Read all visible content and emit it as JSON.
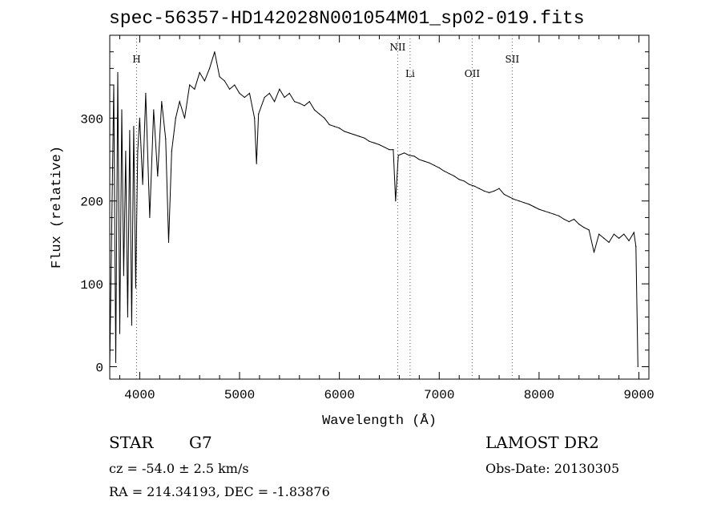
{
  "header": {
    "title": "spec-56357-HD142028N001054M01_sp02-019.fits"
  },
  "info": {
    "class_label": "STAR",
    "subclass": "G7",
    "survey": "LAMOST DR2",
    "cz": "cz = -54.0 ± 2.5 km/s",
    "obs_date": "Obs-Date: 20130305",
    "radec": "RA = 214.34193, DEC =  -1.83876"
  },
  "chart_data": {
    "type": "line",
    "title": "spec-56357-HD142028N001054M01_sp02-019.fits",
    "xlabel": "Wavelength (Å)",
    "ylabel": "Flux (relative)",
    "xlim": [
      3700,
      9100
    ],
    "ylim": [
      -15,
      400
    ],
    "xticks": [
      4000,
      5000,
      6000,
      7000,
      8000,
      9000
    ],
    "yticks": [
      0,
      100,
      200,
      300
    ],
    "series": [
      {
        "points": [
          [
            3700,
            0
          ],
          [
            3740,
            340
          ],
          [
            3760,
            5
          ],
          [
            3780,
            355
          ],
          [
            3800,
            40
          ],
          [
            3820,
            310
          ],
          [
            3840,
            110
          ],
          [
            3860,
            260
          ],
          [
            3880,
            60
          ],
          [
            3900,
            285
          ],
          [
            3920,
            50
          ],
          [
            3940,
            290
          ],
          [
            3960,
            95
          ],
          [
            3980,
            260
          ],
          [
            4000,
            300
          ],
          [
            4030,
            220
          ],
          [
            4060,
            330
          ],
          [
            4100,
            180
          ],
          [
            4140,
            310
          ],
          [
            4180,
            230
          ],
          [
            4220,
            320
          ],
          [
            4260,
            275
          ],
          [
            4290,
            150
          ],
          [
            4320,
            260
          ],
          [
            4360,
            300
          ],
          [
            4400,
            320
          ],
          [
            4450,
            300
          ],
          [
            4500,
            340
          ],
          [
            4550,
            335
          ],
          [
            4600,
            355
          ],
          [
            4650,
            345
          ],
          [
            4700,
            360
          ],
          [
            4750,
            380
          ],
          [
            4800,
            350
          ],
          [
            4850,
            345
          ],
          [
            4900,
            335
          ],
          [
            4950,
            340
          ],
          [
            5000,
            330
          ],
          [
            5050,
            325
          ],
          [
            5100,
            330
          ],
          [
            5150,
            300
          ],
          [
            5170,
            245
          ],
          [
            5190,
            305
          ],
          [
            5250,
            325
          ],
          [
            5300,
            330
          ],
          [
            5350,
            320
          ],
          [
            5400,
            335
          ],
          [
            5450,
            325
          ],
          [
            5500,
            330
          ],
          [
            5550,
            320
          ],
          [
            5600,
            318
          ],
          [
            5650,
            315
          ],
          [
            5700,
            320
          ],
          [
            5750,
            310
          ],
          [
            5800,
            305
          ],
          [
            5850,
            300
          ],
          [
            5900,
            292
          ],
          [
            5950,
            290
          ],
          [
            6000,
            288
          ],
          [
            6050,
            284
          ],
          [
            6100,
            282
          ],
          [
            6150,
            280
          ],
          [
            6200,
            278
          ],
          [
            6250,
            276
          ],
          [
            6300,
            272
          ],
          [
            6350,
            270
          ],
          [
            6400,
            268
          ],
          [
            6450,
            265
          ],
          [
            6500,
            262
          ],
          [
            6540,
            262
          ],
          [
            6563,
            200
          ],
          [
            6590,
            255
          ],
          [
            6650,
            258
          ],
          [
            6700,
            255
          ],
          [
            6750,
            254
          ],
          [
            6800,
            250
          ],
          [
            6850,
            248
          ],
          [
            6900,
            246
          ],
          [
            6950,
            243
          ],
          [
            7000,
            240
          ],
          [
            7050,
            236
          ],
          [
            7100,
            233
          ],
          [
            7150,
            230
          ],
          [
            7200,
            226
          ],
          [
            7250,
            224
          ],
          [
            7300,
            220
          ],
          [
            7350,
            218
          ],
          [
            7400,
            215
          ],
          [
            7450,
            212
          ],
          [
            7500,
            210
          ],
          [
            7550,
            212
          ],
          [
            7600,
            215
          ],
          [
            7650,
            208
          ],
          [
            7700,
            205
          ],
          [
            7750,
            202
          ],
          [
            7800,
            200
          ],
          [
            7850,
            198
          ],
          [
            7900,
            196
          ],
          [
            7950,
            193
          ],
          [
            8000,
            190
          ],
          [
            8050,
            188
          ],
          [
            8100,
            186
          ],
          [
            8150,
            184
          ],
          [
            8200,
            182
          ],
          [
            8250,
            178
          ],
          [
            8300,
            175
          ],
          [
            8350,
            178
          ],
          [
            8400,
            172
          ],
          [
            8450,
            168
          ],
          [
            8500,
            165
          ],
          [
            8550,
            138
          ],
          [
            8600,
            160
          ],
          [
            8650,
            155
          ],
          [
            8700,
            150
          ],
          [
            8750,
            160
          ],
          [
            8800,
            155
          ],
          [
            8850,
            160
          ],
          [
            8900,
            152
          ],
          [
            8950,
            162
          ],
          [
            8970,
            145
          ],
          [
            8990,
            0
          ]
        ]
      }
    ],
    "lines": [
      {
        "label": "H",
        "x": 3969,
        "line_style": "dotted"
      },
      {
        "label": "NII",
        "x": 6584,
        "line_style": "dotted"
      },
      {
        "label": "Li",
        "x": 6708,
        "line_style": "dotted"
      },
      {
        "label": "OII",
        "x": 7330,
        "line_style": "dotted"
      },
      {
        "label": "SII",
        "x": 7731,
        "line_style": "dotted"
      }
    ],
    "grid": false,
    "legend": "none"
  }
}
